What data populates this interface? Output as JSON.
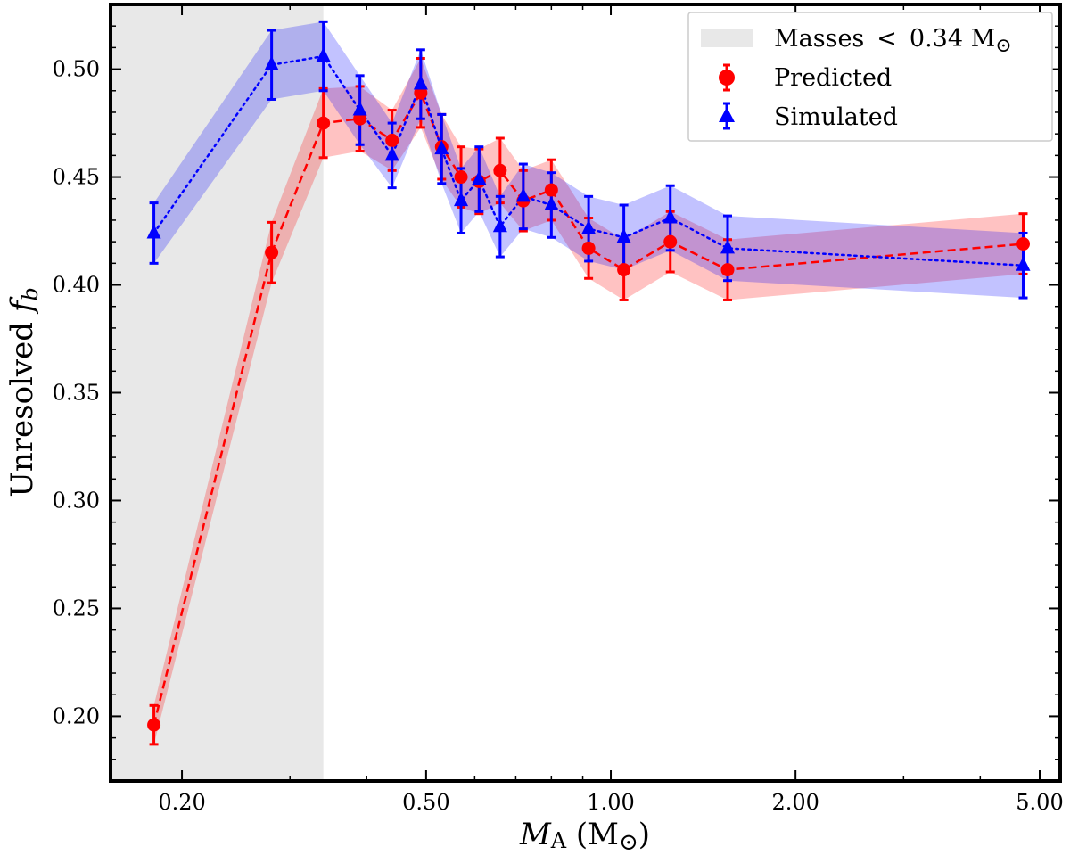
{
  "chart_data": {
    "type": "line",
    "title": "",
    "xlabel": "M_A (M_⊙)",
    "xlabel_main": "M",
    "xlabel_sub": "A",
    "xlabel_unit": " (M",
    "xlabel_sun": "⊙",
    "xlabel_close": ")",
    "ylabel": "Unresolved f_b",
    "ylabel_main": "Unresolved ",
    "ylabel_f": "f",
    "ylabel_sub": "b",
    "xscale": "log",
    "xlim": [
      0.153,
      5.4
    ],
    "ylim": [
      0.17,
      0.53
    ],
    "xticks": [
      0.2,
      0.5,
      1.0,
      2.0,
      5.0
    ],
    "xtick_labels": [
      "0.20",
      "0.50",
      "1.00",
      "2.00",
      "5.00"
    ],
    "yticks": [
      0.2,
      0.25,
      0.3,
      0.35,
      0.4,
      0.45,
      0.5
    ],
    "ytick_labels": [
      "0.20",
      "0.25",
      "0.30",
      "0.35",
      "0.40",
      "0.45",
      "0.50"
    ],
    "shaded_region": {
      "x0": 0.153,
      "x1": 0.34,
      "label_main": "Masses",
      "label_lt": "<",
      "label_val": "0.34 M",
      "label_sun": "⊙",
      "color": "#e8e8e8"
    },
    "legend_position": "top-right",
    "series": [
      {
        "name": "Predicted",
        "color": "#ff0000",
        "linestyle": "dashed",
        "marker": "circle",
        "x": [
          0.18,
          0.28,
          0.34,
          0.39,
          0.44,
          0.49,
          0.53,
          0.57,
          0.61,
          0.66,
          0.72,
          0.8,
          0.92,
          1.05,
          1.25,
          1.55,
          4.7
        ],
        "y": [
          0.196,
          0.415,
          0.475,
          0.477,
          0.467,
          0.489,
          0.464,
          0.45,
          0.448,
          0.453,
          0.439,
          0.444,
          0.417,
          0.407,
          0.42,
          0.407,
          0.419
        ],
        "err": [
          0.009,
          0.014,
          0.016,
          0.015,
          0.014,
          0.016,
          0.015,
          0.014,
          0.015,
          0.015,
          0.014,
          0.014,
          0.014,
          0.014,
          0.014,
          0.014,
          0.014
        ]
      },
      {
        "name": "Simulated",
        "color": "#0000ff",
        "linestyle": "dotted",
        "marker": "triangle",
        "x": [
          0.18,
          0.28,
          0.34,
          0.39,
          0.44,
          0.49,
          0.53,
          0.57,
          0.61,
          0.66,
          0.72,
          0.8,
          0.92,
          1.05,
          1.25,
          1.55,
          4.7
        ],
        "y": [
          0.424,
          0.502,
          0.506,
          0.481,
          0.46,
          0.493,
          0.463,
          0.439,
          0.449,
          0.427,
          0.441,
          0.437,
          0.426,
          0.422,
          0.431,
          0.417,
          0.409
        ],
        "err": [
          0.014,
          0.016,
          0.016,
          0.016,
          0.015,
          0.016,
          0.016,
          0.015,
          0.015,
          0.014,
          0.015,
          0.015,
          0.015,
          0.015,
          0.015,
          0.015,
          0.015
        ]
      }
    ]
  }
}
